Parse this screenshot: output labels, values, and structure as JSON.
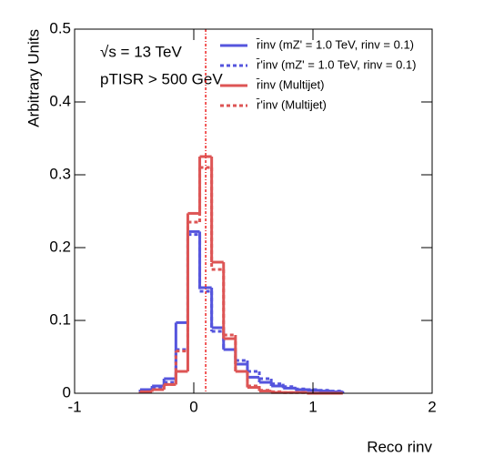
{
  "chart_data": {
    "type": "histogram",
    "annotations": [
      "√s = 13 TeV",
      "pTISR > 500 GeV"
    ],
    "x_label": "Reco rinv",
    "y_label": "Arbitrary Units",
    "xlim": [
      -1,
      2
    ],
    "ylim": [
      0,
      0.5
    ],
    "xticks": [
      -1,
      0,
      1,
      2
    ],
    "yticks": [
      0,
      0.1,
      0.2,
      0.3,
      0.4,
      0.5
    ],
    "reference_line_x": 0.1,
    "bins": [
      -0.45,
      -0.35,
      -0.25,
      -0.15,
      -0.05,
      0.05,
      0.15,
      0.25,
      0.35,
      0.45,
      0.55,
      0.65,
      0.75,
      0.85,
      0.95,
      1.05,
      1.15,
      1.25
    ],
    "series": [
      {
        "name": "r̄inv (mZ' = 1.0 TeV, rinv = 0.1)",
        "color": "#5555dd",
        "style": "solid",
        "values": [
          0.005,
          0.01,
          0.02,
          0.097,
          0.222,
          0.145,
          0.09,
          0.06,
          0.04,
          0.022,
          0.015,
          0.01,
          0.007,
          0.005,
          0.004,
          0.003,
          0.002
        ]
      },
      {
        "name": "r̄'inv (mZ' = 1.0 TeV, rinv = 0.1)",
        "color": "#5555dd",
        "style": "dashed",
        "values": [
          0.004,
          0.008,
          0.015,
          0.06,
          0.218,
          0.14,
          0.085,
          0.06,
          0.045,
          0.03,
          0.02,
          0.013,
          0.009,
          0.006,
          0.005,
          0.004,
          0.003
        ]
      },
      {
        "name": "r̄inv (Multijet)",
        "color": "#dd5555",
        "style": "solid",
        "values": [
          0.002,
          0.005,
          0.012,
          0.03,
          0.247,
          0.325,
          0.18,
          0.075,
          0.03,
          0.008,
          0.003,
          0.001,
          0.001,
          0.001,
          0.0,
          0.0,
          0.0
        ]
      },
      {
        "name": "r̄'inv (Multijet)",
        "color": "#dd5555",
        "style": "dashed",
        "values": [
          0.002,
          0.005,
          0.012,
          0.058,
          0.235,
          0.31,
          0.17,
          0.08,
          0.03,
          0.01,
          0.004,
          0.002,
          0.001,
          0.001,
          0.0,
          0.0,
          0.0
        ]
      }
    ]
  }
}
